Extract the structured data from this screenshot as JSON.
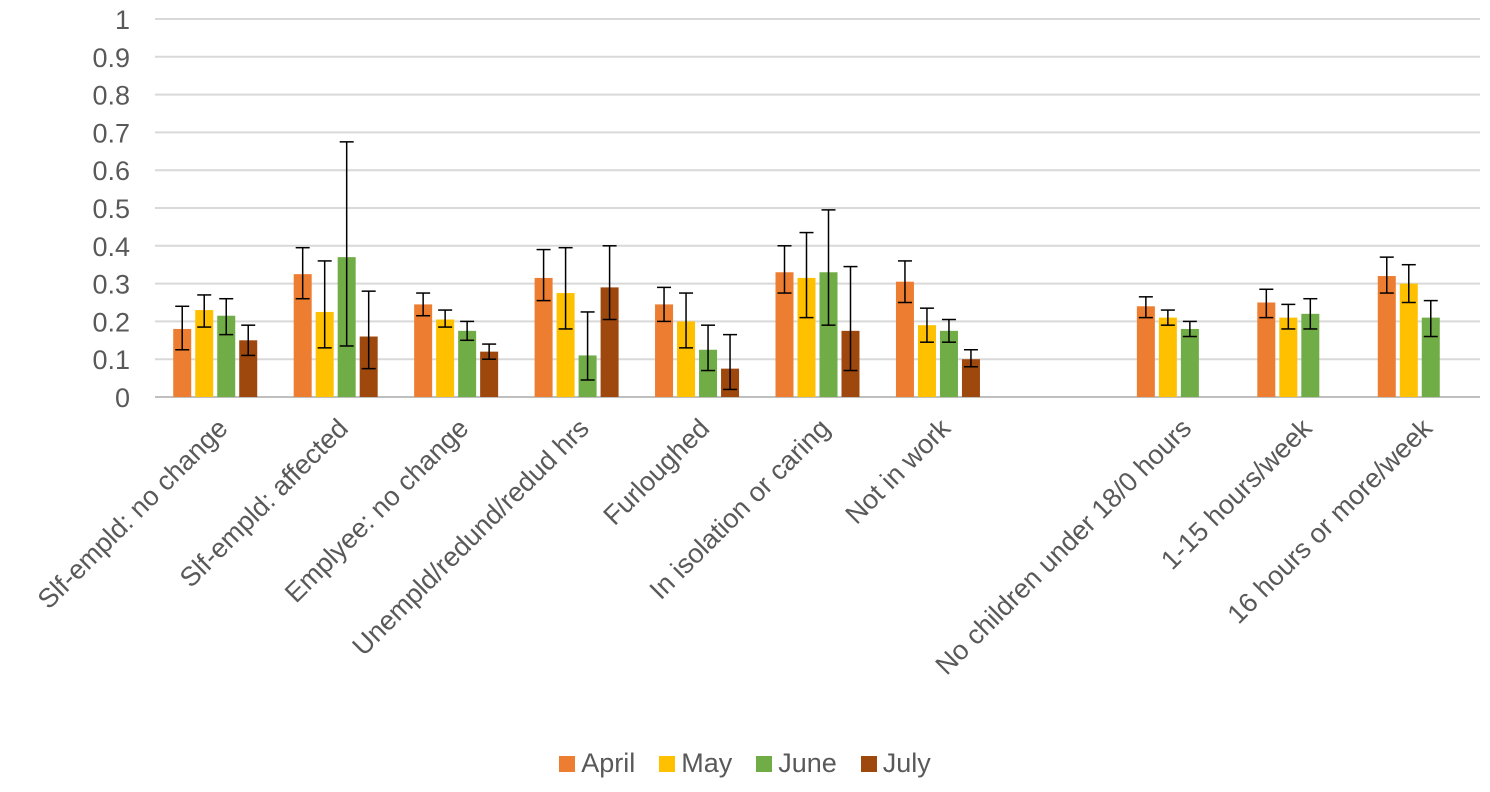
{
  "chart_data": {
    "type": "bar",
    "title": "",
    "xlabel": "",
    "ylabel": "",
    "ylim": [
      0,
      1
    ],
    "yticks": [
      "0",
      "0.1",
      "0.2",
      "0.3",
      "0.4",
      "0.5",
      "0.6",
      "0.7",
      "0.8",
      "0.9",
      "1"
    ],
    "grid": true,
    "legend_position": "bottom",
    "error_bars": true,
    "categories": [
      "Slf-empld: no change",
      "Slf-empld: affected",
      "Emplyee: no change",
      "Unempld/redund/redud hrs",
      "Furloughed",
      "In isolation or caring",
      "Not in work",
      "",
      "No children under 18/0 hours",
      "1-15 hours/week",
      "16 hours or more/week"
    ],
    "series": [
      {
        "name": "April",
        "color": "#ED7D31",
        "values": [
          0.18,
          0.325,
          0.245,
          0.315,
          0.245,
          0.33,
          0.305,
          null,
          0.24,
          0.25,
          0.32
        ],
        "error_low": [
          0.125,
          0.26,
          0.215,
          0.255,
          0.2,
          0.275,
          0.25,
          null,
          0.21,
          0.21,
          0.275
        ],
        "error_high": [
          0.24,
          0.395,
          0.275,
          0.39,
          0.29,
          0.4,
          0.36,
          null,
          0.265,
          0.285,
          0.37
        ]
      },
      {
        "name": "May",
        "color": "#FFC000",
        "values": [
          0.23,
          0.225,
          0.205,
          0.275,
          0.2,
          0.315,
          0.19,
          null,
          0.21,
          0.21,
          0.3
        ],
        "error_low": [
          0.185,
          0.13,
          0.185,
          0.18,
          0.13,
          0.21,
          0.145,
          null,
          0.19,
          0.18,
          0.25
        ],
        "error_high": [
          0.27,
          0.36,
          0.23,
          0.395,
          0.275,
          0.435,
          0.235,
          null,
          0.23,
          0.245,
          0.35
        ]
      },
      {
        "name": "June",
        "color": "#70AD47",
        "values": [
          0.215,
          0.37,
          0.175,
          0.11,
          0.125,
          0.33,
          0.175,
          null,
          0.18,
          0.22,
          0.21
        ],
        "error_low": [
          0.165,
          0.135,
          0.15,
          0.045,
          0.07,
          0.19,
          0.145,
          null,
          0.16,
          0.18,
          0.16
        ],
        "error_high": [
          0.26,
          0.675,
          0.2,
          0.225,
          0.19,
          0.495,
          0.205,
          null,
          0.2,
          0.26,
          0.255
        ]
      },
      {
        "name": "July",
        "color": "#9E480E",
        "values": [
          0.15,
          0.16,
          0.12,
          0.29,
          0.075,
          0.175,
          0.1,
          null,
          null,
          null,
          null
        ],
        "error_low": [
          0.11,
          0.075,
          0.1,
          0.205,
          0.02,
          0.07,
          0.08,
          null,
          null,
          null,
          null
        ],
        "error_high": [
          0.19,
          0.28,
          0.14,
          0.4,
          0.165,
          0.345,
          0.125,
          null,
          null,
          null,
          null
        ]
      }
    ]
  },
  "legend": {
    "april": "April",
    "may": "May",
    "june": "June",
    "july": "July"
  }
}
